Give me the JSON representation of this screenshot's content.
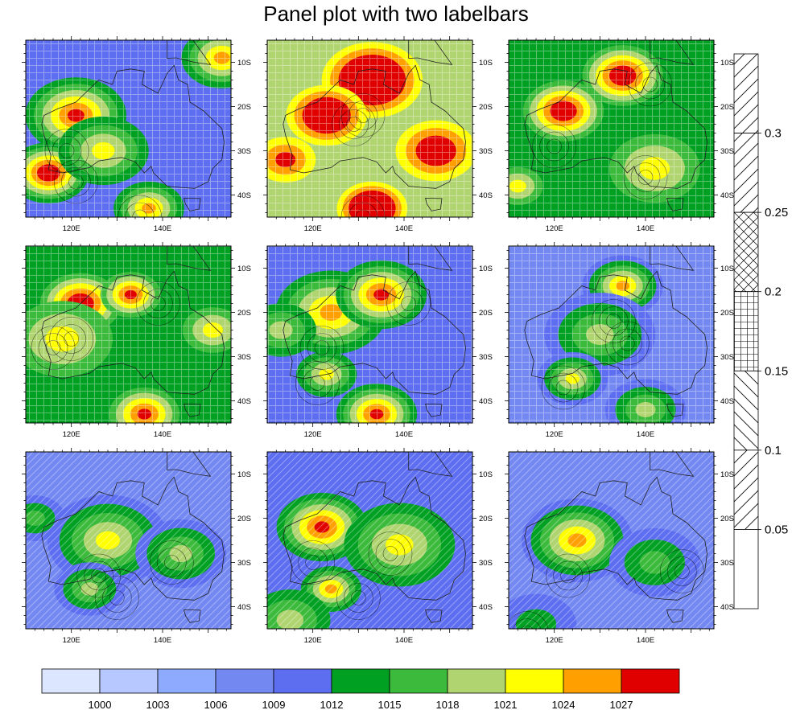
{
  "title": "Panel plot with two labelbars",
  "chart_data": {
    "type": "heatmap",
    "panel_count": 9,
    "panel_layout": "3x3",
    "map_region": "Australia",
    "x_ticks": [
      "120E",
      "140E"
    ],
    "y_ticks": [
      "10S",
      "20S",
      "30S",
      "40S"
    ],
    "x_range": [
      110,
      155
    ],
    "y_range": [
      -45,
      -5
    ],
    "x_tick_values": [
      120,
      140
    ],
    "y_tick_values": [
      -10,
      -20,
      -30,
      -40
    ],
    "fill_legend": {
      "placement": "bottom",
      "orientation": "horizontal",
      "labels": [
        "1000",
        "1003",
        "1006",
        "1009",
        "1012",
        "1015",
        "1018",
        "1021",
        "1024",
        "1027"
      ],
      "levels": [
        1000,
        1003,
        1006,
        1009,
        1012,
        1015,
        1018,
        1021,
        1024,
        1027
      ],
      "colors": [
        "#dce6ff",
        "#b6c8ff",
        "#8eaaff",
        "#7488f2",
        "#5e6ef0",
        "#00a023",
        "#3cba3c",
        "#b0d470",
        "#ffff00",
        "#ffa000",
        "#e10000"
      ]
    },
    "pattern_legend": {
      "placement": "right",
      "orientation": "vertical",
      "labels": [
        "0.3",
        "0.25",
        "0.2",
        "0.15",
        "0.1",
        "0.05"
      ],
      "levels": [
        0.3,
        0.25,
        0.2,
        0.15,
        0.1,
        0.05
      ],
      "patterns": [
        "diag-right",
        "diag-right",
        "crosshatch",
        "grid",
        "diag-left",
        "diag-right",
        "blank"
      ]
    },
    "panels": [
      {
        "base": 4,
        "pattern": "grid",
        "blobs": [
          [
            121,
            -22,
            10,
            6
          ],
          [
            115,
            -35,
            8,
            7
          ],
          [
            137,
            -43,
            7,
            5
          ],
          [
            153,
            -9,
            8,
            5
          ],
          [
            127,
            -30,
            9,
            4
          ]
        ]
      },
      {
        "base": 7,
        "pattern": "grid",
        "blobs": [
          [
            133,
            -14,
            10,
            6
          ],
          [
            123,
            -22,
            8,
            5
          ],
          [
            133,
            -43,
            7,
            6
          ],
          [
            147,
            -30,
            8,
            4
          ],
          [
            114,
            -32,
            6,
            3
          ]
        ]
      },
      {
        "base": 5,
        "pattern": "grid",
        "blobs": [
          [
            122,
            -21,
            8,
            6
          ],
          [
            135,
            -13,
            8,
            6
          ],
          [
            142,
            -34,
            9,
            3
          ],
          [
            112,
            -38,
            5,
            3
          ]
        ]
      },
      {
        "base": 5,
        "pattern": "grid",
        "blobs": [
          [
            122,
            -18,
            8,
            6
          ],
          [
            133,
            -16,
            6,
            5
          ],
          [
            118,
            -26,
            10,
            3
          ],
          [
            136,
            -43,
            7,
            5
          ],
          [
            151,
            -24,
            6,
            3
          ]
        ]
      },
      {
        "base": 4,
        "pattern": "grid",
        "blobs": [
          [
            124,
            -20,
            11,
            5
          ],
          [
            135,
            -16,
            9,
            6
          ],
          [
            123,
            -34,
            6,
            4
          ],
          [
            134,
            -43,
            8,
            6
          ],
          [
            113,
            -24,
            7,
            3
          ]
        ]
      },
      {
        "base": 3,
        "pattern": "grid",
        "blobs": [
          [
            135,
            -14,
            8,
            6
          ],
          [
            130,
            -25,
            11,
            4
          ],
          [
            124,
            -35,
            7,
            5
          ],
          [
            140,
            -42,
            8,
            4
          ]
        ]
      },
      {
        "base": 3,
        "pattern": "diag",
        "blobs": [
          [
            128,
            -25,
            12,
            5
          ],
          [
            124,
            -36,
            7,
            4
          ],
          [
            144,
            -28,
            9,
            4
          ],
          [
            112,
            -20,
            6,
            3
          ]
        ]
      },
      {
        "base": 4,
        "pattern": "diag",
        "blobs": [
          [
            122,
            -22,
            9,
            6
          ],
          [
            124,
            -36,
            6,
            5
          ],
          [
            139,
            -26,
            11,
            4
          ],
          [
            115,
            -43,
            8,
            3
          ]
        ]
      },
      {
        "base": 3,
        "pattern": "diag",
        "blobs": [
          [
            125,
            -25,
            11,
            6
          ],
          [
            142,
            -30,
            9,
            3
          ],
          [
            116,
            -44,
            8,
            2
          ]
        ]
      }
    ]
  }
}
